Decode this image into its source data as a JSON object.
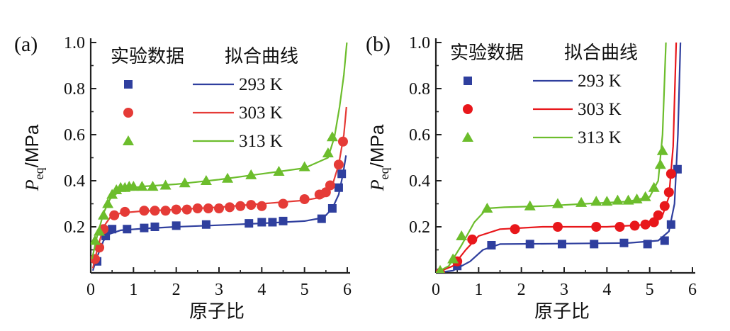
{
  "chart_data": [
    {
      "type": "line",
      "panel_label": "(a)",
      "xlabel": "原子比",
      "ylabel": "P",
      "ylabel_sub": "eq",
      "ylabel_unit": "/MPa",
      "xlim": [
        0,
        6
      ],
      "ylim": [
        0,
        1.0
      ],
      "xticks": [
        0,
        1,
        2,
        3,
        4,
        5,
        6
      ],
      "yticks": [
        0.2,
        0.4,
        0.6,
        0.8,
        1.0
      ],
      "ytick_labels": [
        "0.2",
        "0.4",
        "0.6",
        "0.8",
        "1.0"
      ],
      "grid": false,
      "legend": {
        "position": "top-right",
        "markers_header": "实验数据",
        "lines_header": "拟合曲线"
      },
      "series": [
        {
          "name": "293 K",
          "color": "#2f3f9e",
          "marker": "square",
          "points": [
            [
              0.15,
              0.05
            ],
            [
              0.35,
              0.16
            ],
            [
              0.5,
              0.19
            ],
            [
              0.85,
              0.19
            ],
            [
              1.25,
              0.195
            ],
            [
              1.5,
              0.2
            ],
            [
              2.0,
              0.205
            ],
            [
              2.7,
              0.21
            ],
            [
              3.7,
              0.215
            ],
            [
              4.0,
              0.22
            ],
            [
              4.25,
              0.22
            ],
            [
              4.5,
              0.225
            ],
            [
              5.4,
              0.235
            ],
            [
              5.65,
              0.28
            ],
            [
              5.8,
              0.37
            ],
            [
              5.87,
              0.43
            ]
          ],
          "curve": [
            [
              0.05,
              0.01
            ],
            [
              0.15,
              0.07
            ],
            [
              0.3,
              0.14
            ],
            [
              0.45,
              0.17
            ],
            [
              0.7,
              0.185
            ],
            [
              1.2,
              0.192
            ],
            [
              2.0,
              0.2
            ],
            [
              3.0,
              0.207
            ],
            [
              4.0,
              0.215
            ],
            [
              5.0,
              0.225
            ],
            [
              5.45,
              0.24
            ],
            [
              5.65,
              0.28
            ],
            [
              5.8,
              0.34
            ],
            [
              5.9,
              0.43
            ],
            [
              5.97,
              0.51
            ]
          ]
        },
        {
          "name": "303 K",
          "color": "#e53b37",
          "marker": "circle",
          "points": [
            [
              0.1,
              0.06
            ],
            [
              0.2,
              0.11
            ],
            [
              0.3,
              0.19
            ],
            [
              0.55,
              0.25
            ],
            [
              0.8,
              0.265
            ],
            [
              1.25,
              0.27
            ],
            [
              1.5,
              0.27
            ],
            [
              1.75,
              0.27
            ],
            [
              2.0,
              0.275
            ],
            [
              2.25,
              0.275
            ],
            [
              2.5,
              0.28
            ],
            [
              2.75,
              0.28
            ],
            [
              3.0,
              0.28
            ],
            [
              3.25,
              0.285
            ],
            [
              3.5,
              0.29
            ],
            [
              3.75,
              0.295
            ],
            [
              4.0,
              0.29
            ],
            [
              4.5,
              0.3
            ],
            [
              5.0,
              0.32
            ],
            [
              5.35,
              0.34
            ],
            [
              5.5,
              0.35
            ],
            [
              5.6,
              0.38
            ],
            [
              5.8,
              0.47
            ],
            [
              5.9,
              0.57
            ]
          ],
          "curve": [
            [
              0.05,
              0.02
            ],
            [
              0.15,
              0.1
            ],
            [
              0.3,
              0.2
            ],
            [
              0.45,
              0.24
            ],
            [
              0.7,
              0.26
            ],
            [
              1.2,
              0.268
            ],
            [
              2.0,
              0.275
            ],
            [
              3.0,
              0.285
            ],
            [
              4.0,
              0.3
            ],
            [
              5.0,
              0.315
            ],
            [
              5.45,
              0.33
            ],
            [
              5.65,
              0.38
            ],
            [
              5.8,
              0.47
            ],
            [
              5.92,
              0.6
            ],
            [
              5.98,
              0.72
            ]
          ]
        },
        {
          "name": "313 K",
          "color": "#6cbd2c",
          "marker": "triangle",
          "points": [
            [
              0.1,
              0.14
            ],
            [
              0.2,
              0.18
            ],
            [
              0.3,
              0.25
            ],
            [
              0.4,
              0.3
            ],
            [
              0.5,
              0.34
            ],
            [
              0.6,
              0.36
            ],
            [
              0.7,
              0.37
            ],
            [
              0.8,
              0.37
            ],
            [
              0.9,
              0.375
            ],
            [
              1.0,
              0.375
            ],
            [
              1.2,
              0.375
            ],
            [
              1.45,
              0.375
            ],
            [
              1.75,
              0.38
            ],
            [
              2.2,
              0.39
            ],
            [
              2.7,
              0.4
            ],
            [
              3.2,
              0.41
            ],
            [
              3.75,
              0.425
            ],
            [
              4.4,
              0.44
            ],
            [
              5.0,
              0.46
            ],
            [
              5.55,
              0.52
            ],
            [
              5.65,
              0.59
            ]
          ],
          "curve": [
            [
              0.03,
              0.06
            ],
            [
              0.15,
              0.16
            ],
            [
              0.3,
              0.26
            ],
            [
              0.45,
              0.32
            ],
            [
              0.7,
              0.36
            ],
            [
              1.2,
              0.375
            ],
            [
              2.0,
              0.385
            ],
            [
              3.0,
              0.405
            ],
            [
              4.0,
              0.43
            ],
            [
              5.0,
              0.455
            ],
            [
              5.55,
              0.5
            ],
            [
              5.7,
              0.59
            ],
            [
              5.82,
              0.72
            ],
            [
              5.92,
              0.86
            ],
            [
              5.99,
              1.0
            ]
          ]
        }
      ]
    },
    {
      "type": "line",
      "panel_label": "(b)",
      "xlabel": "原子比",
      "ylabel": "P",
      "ylabel_sub": "eq",
      "ylabel_unit": "/MPa",
      "xlim": [
        0,
        6
      ],
      "ylim": [
        0,
        1.0
      ],
      "xticks": [
        0,
        1,
        2,
        3,
        4,
        5,
        6
      ],
      "yticks": [
        0.2,
        0.4,
        0.6,
        0.8,
        1.0
      ],
      "ytick_labels": [
        "0.2",
        "0.4",
        "0.6",
        "0.8",
        "1.0"
      ],
      "grid": false,
      "legend": {
        "position": "top-right",
        "markers_header": "实验数据",
        "lines_header": "拟合曲线"
      },
      "series": [
        {
          "name": "293 K",
          "color": "#2f3f9e",
          "marker": "square",
          "points": [
            [
              0.1,
              0.0
            ],
            [
              0.5,
              0.03
            ],
            [
              1.3,
              0.12
            ],
            [
              2.2,
              0.125
            ],
            [
              2.95,
              0.125
            ],
            [
              3.7,
              0.125
            ],
            [
              4.4,
              0.13
            ],
            [
              4.95,
              0.125
            ],
            [
              5.35,
              0.14
            ],
            [
              5.5,
              0.21
            ],
            [
              5.65,
              0.45
            ]
          ],
          "curve": [
            [
              0.0,
              0.0
            ],
            [
              0.4,
              0.01
            ],
            [
              0.8,
              0.05
            ],
            [
              1.1,
              0.1
            ],
            [
              1.5,
              0.125
            ],
            [
              3.0,
              0.127
            ],
            [
              4.5,
              0.13
            ],
            [
              5.2,
              0.14
            ],
            [
              5.45,
              0.18
            ],
            [
              5.58,
              0.3
            ],
            [
              5.66,
              0.6
            ],
            [
              5.72,
              1.0
            ]
          ]
        },
        {
          "name": "303 K",
          "color": "#e8171b",
          "marker": "circle",
          "points": [
            [
              0.1,
              0.0
            ],
            [
              0.5,
              0.05
            ],
            [
              0.85,
              0.145
            ],
            [
              1.85,
              0.19
            ],
            [
              2.85,
              0.2
            ],
            [
              3.75,
              0.2
            ],
            [
              4.3,
              0.2
            ],
            [
              4.65,
              0.205
            ],
            [
              4.9,
              0.21
            ],
            [
              5.1,
              0.22
            ],
            [
              5.2,
              0.25
            ],
            [
              5.35,
              0.29
            ],
            [
              5.45,
              0.35
            ],
            [
              5.5,
              0.43
            ]
          ],
          "curve": [
            [
              0.0,
              0.0
            ],
            [
              0.4,
              0.03
            ],
            [
              0.7,
              0.1
            ],
            [
              1.0,
              0.16
            ],
            [
              1.5,
              0.19
            ],
            [
              2.5,
              0.2
            ],
            [
              4.0,
              0.2
            ],
            [
              5.0,
              0.21
            ],
            [
              5.3,
              0.25
            ],
            [
              5.45,
              0.33
            ],
            [
              5.55,
              0.55
            ],
            [
              5.62,
              1.0
            ]
          ]
        },
        {
          "name": "313 K",
          "color": "#6cbd2c",
          "marker": "triangle",
          "points": [
            [
              0.1,
              0.01
            ],
            [
              0.4,
              0.06
            ],
            [
              0.6,
              0.16
            ],
            [
              1.2,
              0.28
            ],
            [
              2.2,
              0.29
            ],
            [
              2.85,
              0.3
            ],
            [
              3.4,
              0.305
            ],
            [
              3.75,
              0.31
            ],
            [
              4.0,
              0.31
            ],
            [
              4.25,
              0.315
            ],
            [
              4.5,
              0.315
            ],
            [
              4.7,
              0.32
            ],
            [
              4.9,
              0.33
            ],
            [
              5.1,
              0.37
            ],
            [
              5.25,
              0.47
            ],
            [
              5.3,
              0.53
            ]
          ],
          "curve": [
            [
              0.0,
              0.0
            ],
            [
              0.3,
              0.03
            ],
            [
              0.6,
              0.12
            ],
            [
              0.9,
              0.22
            ],
            [
              1.2,
              0.28
            ],
            [
              1.6,
              0.285
            ],
            [
              2.5,
              0.29
            ],
            [
              3.5,
              0.3
            ],
            [
              4.5,
              0.31
            ],
            [
              5.0,
              0.33
            ],
            [
              5.2,
              0.4
            ],
            [
              5.3,
              0.6
            ],
            [
              5.38,
              1.0
            ]
          ]
        }
      ]
    }
  ]
}
